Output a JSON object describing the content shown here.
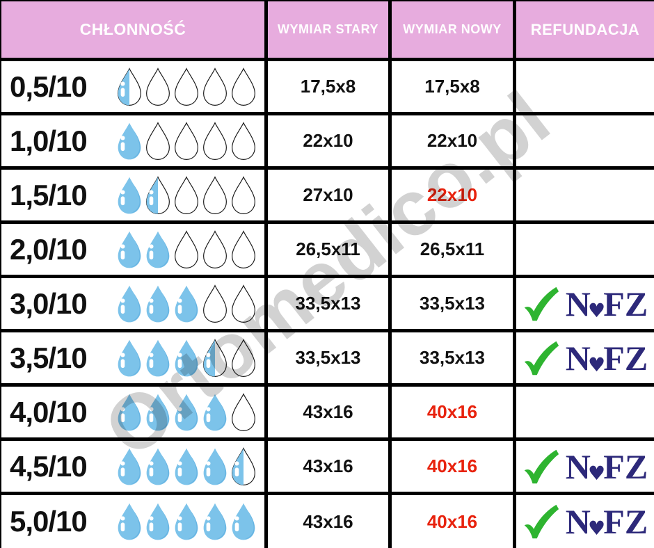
{
  "header": {
    "columns": [
      "CHŁONNOŚĆ",
      "WYMIAR STARY",
      "WYMIAR NOWY",
      "REFUNDACJA"
    ]
  },
  "rows": [
    {
      "rating": "0,5/10",
      "drops": 0.5,
      "old_size": "17,5x8",
      "new_size": "17,5x8",
      "new_size_highlighted": false,
      "refunded": false
    },
    {
      "rating": "1,0/10",
      "drops": 1,
      "old_size": "22x10",
      "new_size": "22x10",
      "new_size_highlighted": false,
      "refunded": false
    },
    {
      "rating": "1,5/10",
      "drops": 1.5,
      "old_size": "27x10",
      "new_size": "22x10",
      "new_size_highlighted": true,
      "refunded": false
    },
    {
      "rating": "2,0/10",
      "drops": 2,
      "old_size": "26,5x11",
      "new_size": "26,5x11",
      "new_size_highlighted": false,
      "refunded": false
    },
    {
      "rating": "3,0/10",
      "drops": 3,
      "old_size": "33,5x13",
      "new_size": "33,5x13",
      "new_size_highlighted": false,
      "refunded": true
    },
    {
      "rating": "3,5/10",
      "drops": 3.5,
      "old_size": "33,5x13",
      "new_size": "33,5x13",
      "new_size_highlighted": false,
      "refunded": true
    },
    {
      "rating": "4,0/10",
      "drops": 4,
      "old_size": "43x16",
      "new_size": "40x16",
      "new_size_highlighted": true,
      "refunded": false
    },
    {
      "rating": "4,5/10",
      "drops": 4.5,
      "old_size": "43x16",
      "new_size": "40x16",
      "new_size_highlighted": true,
      "refunded": true
    },
    {
      "rating": "5,0/10",
      "drops": 5,
      "old_size": "43x16",
      "new_size": "40x16",
      "new_size_highlighted": true,
      "refunded": true
    }
  ],
  "refund": {
    "label": "NFZ",
    "heart_glyph": "♥",
    "check_icon": "green-checkmark"
  },
  "droplet_scale_max": 5,
  "watermark": {
    "text": "Ortomedico.pl"
  },
  "colors": {
    "header_pink": "#E7ACDE",
    "text_black": "#111111",
    "highlight_red": "#E8220D",
    "drop_blue": "#7CC3EA",
    "drop_blue_dark": "#66B4E2",
    "drop_outline": "#1B1B1B",
    "check_green": "#2EB430",
    "nfz_navy": "#2D297A",
    "watermark_gray": "#ADADAD"
  },
  "chart_data": {
    "type": "table",
    "columns": [
      "CHŁONNOŚĆ",
      "WYMIAR STARY",
      "WYMIAR NOWY",
      "REFUNDACJA"
    ],
    "rows": [
      [
        "0,5/10",
        "17,5x8",
        "17,5x8",
        ""
      ],
      [
        "1,0/10",
        "22x10",
        "22x10",
        ""
      ],
      [
        "1,5/10",
        "27x10",
        "22x10",
        ""
      ],
      [
        "2,0/10",
        "26,5x11",
        "26,5x11",
        ""
      ],
      [
        "3,0/10",
        "33,5x13",
        "33,5x13",
        "NFZ"
      ],
      [
        "3,5/10",
        "33,5x13",
        "33,5x13",
        "NFZ"
      ],
      [
        "4,0/10",
        "43x16",
        "40x16",
        ""
      ],
      [
        "4,5/10",
        "43x16",
        "40x16",
        "NFZ"
      ],
      [
        "5,0/10",
        "43x16",
        "40x16",
        "NFZ"
      ]
    ],
    "notes": "droplet pictogram scale 0-5 per row equals rating/2; red values mark changed new dimensions"
  }
}
